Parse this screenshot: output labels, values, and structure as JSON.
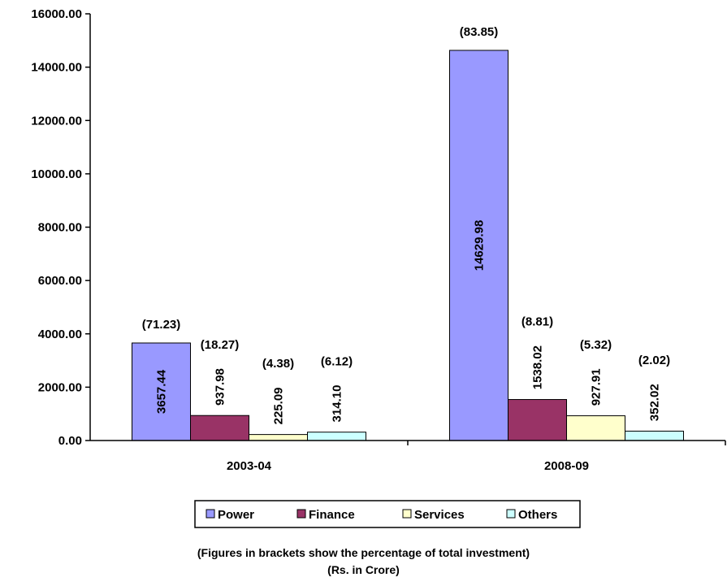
{
  "chart_data": {
    "type": "bar",
    "categories": [
      "2003-04",
      "2008-09"
    ],
    "series": [
      {
        "name": "Power",
        "color": "#9999ff",
        "values": [
          3657.44,
          14629.98
        ],
        "value_labels": [
          "3657.44",
          "14629.98"
        ],
        "percent_labels": [
          "(71.23)",
          "(83.85)"
        ]
      },
      {
        "name": "Finance",
        "color": "#993366",
        "values": [
          937.98,
          1538.02
        ],
        "value_labels": [
          "937.98",
          "1538.02"
        ],
        "percent_labels": [
          "(18.27)",
          "(8.81)"
        ]
      },
      {
        "name": "Services",
        "color": "#ffffcc",
        "values": [
          225.09,
          927.91
        ],
        "value_labels": [
          "225.09",
          "927.91"
        ],
        "percent_labels": [
          "(4.38)",
          "(5.32)"
        ]
      },
      {
        "name": "Others",
        "color": "#ccffff",
        "values": [
          314.1,
          352.02
        ],
        "value_labels": [
          "314.10",
          "352.02"
        ],
        "percent_labels": [
          "(6.12)",
          "(2.02)"
        ]
      }
    ],
    "ylim": [
      0,
      16000
    ],
    "yticks": [
      "0.00",
      "2000.00",
      "4000.00",
      "6000.00",
      "8000.00",
      "10000.00",
      "12000.00",
      "14000.00",
      "16000.00"
    ],
    "grid": false,
    "legend_position": "bottom"
  },
  "notes": {
    "line1": "(Figures in brackets show the percentage of total investment)",
    "line2": "(Rs. in Crore)"
  }
}
